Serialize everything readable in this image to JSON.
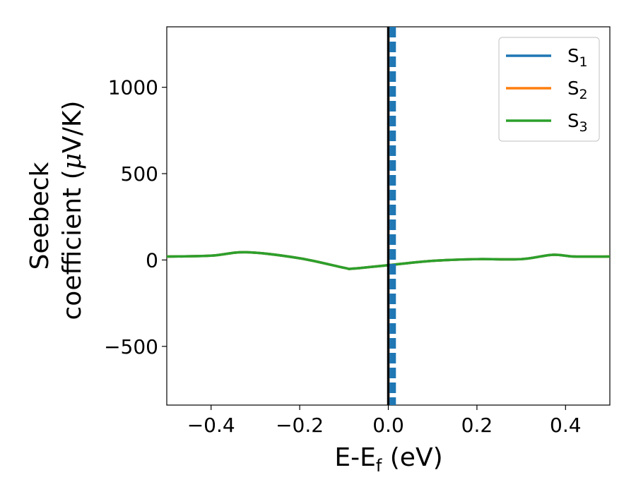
{
  "chart_data": {
    "type": "line",
    "title": "",
    "xlabel": {
      "main": "E-E",
      "sub": "f",
      "unit": " (eV)"
    },
    "ylabel": {
      "line1": "Seebeck",
      "line2_prefix": "coefficient  (",
      "line2_mu": "μ",
      "line2_suffix": "V/K)"
    },
    "xlim": [
      -0.5,
      0.5
    ],
    "ylim": [
      -840,
      1350
    ],
    "xticks": [
      {
        "value": -0.4,
        "label": "−0.4"
      },
      {
        "value": -0.2,
        "label": "−0.2"
      },
      {
        "value": 0.0,
        "label": "0.0"
      },
      {
        "value": 0.2,
        "label": "0.2"
      },
      {
        "value": 0.4,
        "label": "0.4"
      }
    ],
    "yticks": [
      {
        "value": -500,
        "label": "−500"
      },
      {
        "value": 0,
        "label": "0"
      },
      {
        "value": 500,
        "label": "500"
      },
      {
        "value": 1000,
        "label": "1000"
      }
    ],
    "grid": false,
    "legend_position": "top-right",
    "series": [
      {
        "name": "S",
        "sub": "1",
        "color": "#1f77b4",
        "x": [
          -0.5,
          -0.4,
          -0.32,
          -0.2,
          -0.1,
          -0.08,
          0.0,
          0.1,
          0.2,
          0.3,
          0.37,
          0.42,
          0.5
        ],
        "y": [
          20,
          25,
          45,
          10,
          -45,
          -50,
          -30,
          -5,
          5,
          5,
          30,
          20,
          20
        ]
      },
      {
        "name": "S",
        "sub": "2",
        "color": "#ff7f0e",
        "x": [
          -0.5,
          -0.4,
          -0.32,
          -0.2,
          -0.1,
          -0.08,
          0.0,
          0.1,
          0.2,
          0.3,
          0.37,
          0.42,
          0.5
        ],
        "y": [
          20,
          25,
          45,
          10,
          -45,
          -50,
          -30,
          -5,
          5,
          5,
          30,
          20,
          20
        ]
      },
      {
        "name": "S",
        "sub": "3",
        "color": "#2ca02c",
        "x": [
          -0.5,
          -0.4,
          -0.32,
          -0.2,
          -0.1,
          -0.08,
          0.0,
          0.1,
          0.2,
          0.3,
          0.37,
          0.42,
          0.5
        ],
        "y": [
          20,
          25,
          45,
          10,
          -45,
          -50,
          -30,
          -5,
          5,
          5,
          30,
          20,
          20
        ]
      }
    ],
    "vertical_lines": [
      {
        "x": 0.0,
        "style": "solid",
        "color": "#000000"
      },
      {
        "x": 0.01,
        "style": "dashed",
        "color": "#1f77b4"
      }
    ]
  }
}
